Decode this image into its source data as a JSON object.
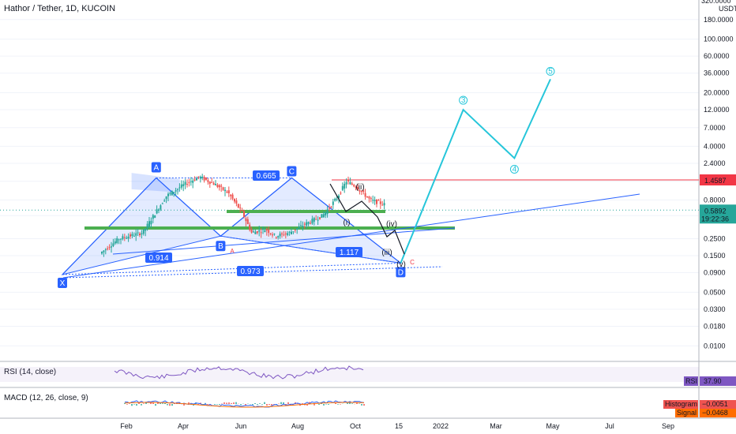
{
  "header": {
    "title": "Hathor / Tether, 1D, KUCOIN"
  },
  "chart_data": {
    "type": "candlestick",
    "title": "Hathor / Tether, 1D, KUCOIN",
    "y_scale": "log",
    "y_unit": "USDT",
    "y_ticks": [
      "320.0000",
      "180.0000",
      "100.0000",
      "60.0000",
      "36.0000",
      "20.0000",
      "12.0000",
      "7.0000",
      "4.0000",
      "2.4000",
      "1.4000",
      "0.8000",
      "0.5000",
      "0.2500",
      "0.1500",
      "0.0900",
      "0.0500",
      "0.0300",
      "0.0180",
      "0.0100"
    ],
    "x_ticks": [
      "Feb",
      "Apr",
      "Jun",
      "Aug",
      "Oct",
      "15",
      "2022",
      "Mar",
      "May",
      "Jul",
      "Sep"
    ],
    "last_price": {
      "value": "0.5892",
      "countdown": "19:22:36"
    },
    "resistance_line": {
      "value": "1.4587"
    },
    "wave_labels": {
      "points": [
        {
          "label": "X",
          "date": "2021-01-06",
          "price": 0.085
        },
        {
          "label": "A",
          "date": "2021-04-15",
          "price": 1.55
        },
        {
          "label": "B",
          "date": "2021-06-22",
          "price": 0.27
        },
        {
          "label": "C",
          "date": "2021-09-05",
          "price": 1.55
        },
        {
          "label": "D",
          "date": "2021-12-29",
          "price": 0.12
        }
      ],
      "ratios": [
        "0.914",
        "0.665",
        "1.117",
        "0.973"
      ],
      "elliott": [
        "(i)",
        "(ii)",
        "(iii)",
        "(iv)",
        "(v)"
      ],
      "projection_labels": [
        "3",
        "4",
        "5"
      ],
      "small_labels": [
        "A",
        "C"
      ]
    },
    "projection": [
      {
        "date": "2021-12-29",
        "price": 0.12
      },
      {
        "date": "2022-03-05",
        "price": 12
      },
      {
        "date": "2022-04-28",
        "price": 2.8
      },
      {
        "date": "2022-06-05",
        "price": 30
      }
    ],
    "rsi": {
      "label": "RSI (14, close)",
      "value": "37.90",
      "tag": "RSI"
    },
    "macd": {
      "label": "MACD (12, 26, close, 9)",
      "histogram": "−0.0051",
      "signal": "−0.0468",
      "histogram_tag": "Histogram",
      "signal_tag": "Signal"
    }
  },
  "colors": {
    "harmonic": "#2962ff",
    "projection": "#26c6da",
    "support": "#4caf50",
    "resistance": "#f23645",
    "up": "#26a69a",
    "down": "#ef5350"
  }
}
